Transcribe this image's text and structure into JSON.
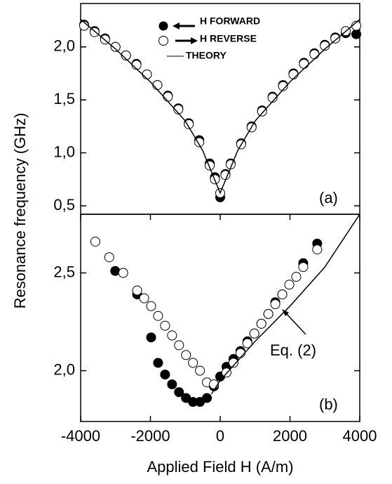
{
  "chart_data": [
    {
      "type": "scatter",
      "ylabel": "Resonance frequency (GHz)",
      "annotation": "(a)",
      "xlim": [
        -4000,
        4000
      ],
      "ylim": [
        0.42,
        2.41
      ],
      "yticks": [
        {
          "value": 0.5,
          "label": "0,5"
        },
        {
          "value": 1.0,
          "label": "1,0"
        },
        {
          "value": 1.5,
          "label": "1,5"
        },
        {
          "value": 2.0,
          "label": "2,0"
        }
      ],
      "series": [
        {
          "name": "H FORWARD",
          "style": "marker",
          "color": "#000000",
          "fill": "#000000",
          "x": [
            -3900,
            -3600,
            -3300,
            -3000,
            -2700,
            -2400,
            -2100,
            -1800,
            -1500,
            -1200,
            -900,
            -600,
            -300,
            -150,
            0,
            150,
            300,
            600,
            900,
            1200,
            1500,
            1800,
            2100,
            2400,
            2700,
            3000,
            3300,
            3600,
            3900
          ],
          "values": [
            2.21,
            2.15,
            2.08,
            2.0,
            1.92,
            1.84,
            1.74,
            1.64,
            1.54,
            1.42,
            1.28,
            1.12,
            0.9,
            0.77,
            0.58,
            0.8,
            0.9,
            1.09,
            1.25,
            1.4,
            1.53,
            1.64,
            1.75,
            1.85,
            1.94,
            2.02,
            2.09,
            2.13,
            2.12
          ]
        },
        {
          "name": "H REVERSE",
          "style": "marker",
          "color": "#000000",
          "fill": "#ffffff",
          "x": [
            -3900,
            -3600,
            -3300,
            -3000,
            -2700,
            -2400,
            -2100,
            -1800,
            -1500,
            -1200,
            -900,
            -600,
            -300,
            -150,
            0,
            150,
            300,
            600,
            900,
            1200,
            1500,
            1800,
            2100,
            2400,
            2700,
            3000,
            3300,
            3600,
            3900
          ],
          "values": [
            2.2,
            2.14,
            2.07,
            2.0,
            1.92,
            1.83,
            1.74,
            1.64,
            1.53,
            1.41,
            1.27,
            1.1,
            0.88,
            0.75,
            0.62,
            0.79,
            0.89,
            1.08,
            1.24,
            1.39,
            1.52,
            1.63,
            1.74,
            1.84,
            1.93,
            2.01,
            2.08,
            2.15,
            2.2
          ]
        },
        {
          "name": "THEORY",
          "style": "line",
          "color": "#000000",
          "x": [
            -4000,
            -3000,
            -2000,
            -1000,
            -500,
            0,
            500,
            1000,
            2000,
            3000,
            4000
          ],
          "values": [
            2.26,
            1.98,
            1.67,
            1.3,
            1.02,
            0.62,
            1.02,
            1.3,
            1.67,
            1.98,
            2.26
          ]
        }
      ]
    },
    {
      "type": "scatter",
      "xlabel": "Applied Field H (A/m)",
      "annotation": "(b)",
      "note": "Eq. (2)",
      "xlim": [
        -4000,
        4000
      ],
      "ylim": [
        1.74,
        2.8
      ],
      "xticks": [
        -4000,
        -2000,
        0,
        2000,
        4000
      ],
      "yticks": [
        {
          "value": 2.0,
          "label": "2,0"
        },
        {
          "value": 2.5,
          "label": "2,5"
        }
      ],
      "series": [
        {
          "name": "H FORWARD",
          "style": "marker",
          "color": "#000000",
          "fill": "#000000",
          "x": [
            -3010,
            -2380,
            -1980,
            -1780,
            -1580,
            -1380,
            -1180,
            -980,
            -780,
            -580,
            -380,
            -180,
            0,
            180,
            380,
            580,
            780,
            980,
            1180,
            1380,
            1580,
            1780,
            2380,
            2780
          ],
          "values": [
            2.51,
            2.39,
            2.17,
            2.04,
            1.98,
            1.93,
            1.89,
            1.86,
            1.84,
            1.84,
            1.86,
            1.92,
            1.97,
            2.02,
            2.06,
            2.1,
            2.15,
            2.19,
            2.24,
            2.29,
            2.35,
            2.39,
            2.55,
            2.65
          ]
        },
        {
          "name": "H REVERSE",
          "style": "marker",
          "color": "#000000",
          "fill": "#ffffff",
          "x": [
            -3580,
            -3180,
            -2780,
            -2380,
            -2180,
            -1980,
            -1780,
            -1580,
            -1380,
            -1180,
            -980,
            -780,
            -580,
            -380,
            -180,
            180,
            380,
            580,
            780,
            980,
            1180,
            1380,
            1580,
            1780,
            1980,
            2180,
            2380,
            2780
          ],
          "values": [
            2.66,
            2.58,
            2.5,
            2.41,
            2.37,
            2.33,
            2.28,
            2.23,
            2.18,
            2.13,
            2.08,
            2.04,
            2.0,
            1.94,
            1.93,
            1.99,
            2.04,
            2.09,
            2.14,
            2.19,
            2.24,
            2.29,
            2.34,
            2.39,
            2.44,
            2.48,
            2.53,
            2.62
          ]
        },
        {
          "name": "THEORY",
          "style": "line",
          "color": "#000000",
          "x": [
            -250,
            0,
            1000,
            2000,
            3000,
            4000
          ],
          "values": [
            1.88,
            1.95,
            2.15,
            2.33,
            2.53,
            2.8
          ]
        }
      ]
    }
  ]
}
